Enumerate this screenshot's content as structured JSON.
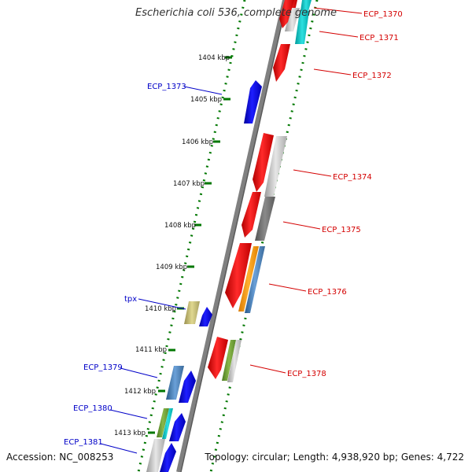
{
  "title": "Escherichia coli 536, complete genome",
  "footer": {
    "accession": "Accession: NC_008253",
    "summary": "Topology: circular; Length: 4,938,920 bp; Genes: 4,722"
  },
  "ticks": [
    "1404 kbp",
    "1405 kbp",
    "1406 kbp",
    "1407 kbp",
    "1408 kbp",
    "1409 kbp",
    "1410 kbp",
    "1411 kbp",
    "1412 kbp",
    "1413 kbp"
  ],
  "labels": {
    "right": [
      "ECP_1370",
      "ECP_1371",
      "ECP_1372",
      "ECP_1374",
      "ECP_1375",
      "ECP_1376",
      "ECP_1378"
    ],
    "left": [
      "ECP_1373",
      "tpx",
      "ECP_1379",
      "ECP_1380",
      "ECP_1381"
    ]
  },
  "colors": {
    "forward_gene": "#ff0000",
    "reverse_gene": "#0000ff",
    "backbone": "#808080",
    "dotted_track": "#007700",
    "label_red": "#d40000",
    "label_blue": "#0000c8"
  }
}
